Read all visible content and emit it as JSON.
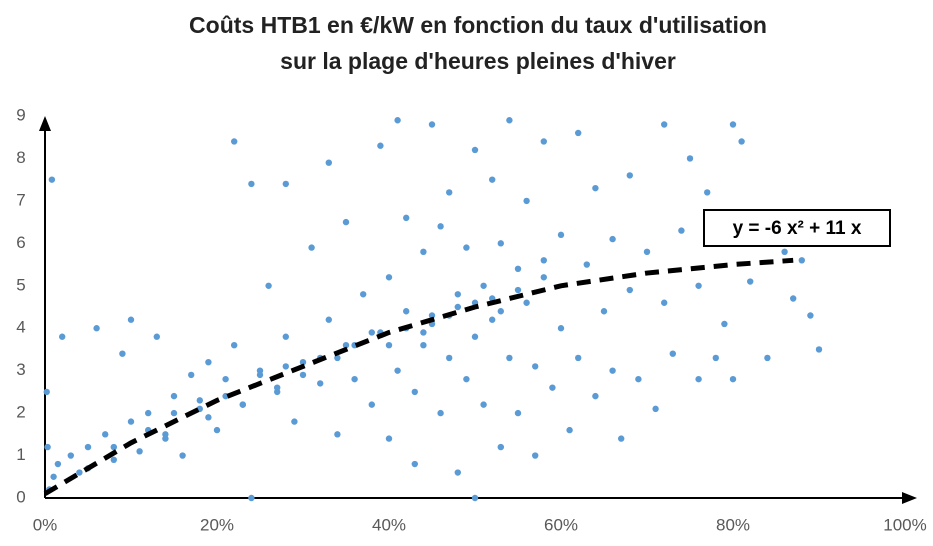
{
  "chart_data": {
    "type": "scatter",
    "title": [
      "Coûts HTB1 en €/kW en fonction du taux d'utilisation",
      "sur la plage d'heures pleines d'hiver"
    ],
    "annotation": "y = -6 x² + 11 x",
    "xlim": [
      0,
      100
    ],
    "ylim": [
      0,
      9
    ],
    "xticks": [
      {
        "value": 0,
        "label": "0%"
      },
      {
        "value": 20,
        "label": "20%"
      },
      {
        "value": 40,
        "label": "40%"
      },
      {
        "value": 60,
        "label": "60%"
      },
      {
        "value": 80,
        "label": "80%"
      },
      {
        "value": 100,
        "label": "100%"
      }
    ],
    "yticks": [
      0,
      1,
      2,
      3,
      4,
      5,
      6,
      7,
      8,
      9
    ],
    "grid": false,
    "color": "#5b9bd5",
    "x": [
      0.5,
      1,
      0.3,
      0.2,
      0.8,
      2,
      1.5,
      3,
      4,
      5,
      6,
      7,
      8,
      9,
      10,
      10,
      11,
      12,
      13,
      14,
      15,
      16,
      17,
      18,
      19,
      20,
      21,
      22,
      22,
      23,
      24,
      24,
      25,
      26,
      27,
      28,
      28,
      29,
      30,
      31,
      32,
      33,
      33,
      34,
      35,
      35,
      36,
      37,
      38,
      39,
      39,
      40,
      40,
      41,
      41,
      42,
      42,
      43,
      43,
      44,
      44,
      45,
      45,
      46,
      46,
      47,
      47,
      48,
      48,
      49,
      49,
      50,
      50,
      50,
      51,
      51,
      52,
      52,
      53,
      53,
      54,
      54,
      55,
      55,
      56,
      56,
      57,
      57,
      58,
      58,
      59,
      60,
      60,
      61,
      62,
      62,
      63,
      64,
      64,
      65,
      66,
      66,
      67,
      68,
      68,
      69,
      70,
      71,
      72,
      72,
      73,
      74,
      75,
      76,
      76,
      77,
      78,
      79,
      80,
      80,
      81,
      82,
      84,
      86,
      87,
      88,
      89,
      90,
      5,
      8,
      12,
      15,
      18,
      21,
      25,
      28,
      32,
      36,
      38,
      42,
      45,
      48,
      50,
      52,
      55,
      58,
      44,
      47,
      53,
      40,
      34,
      30,
      27,
      23,
      19,
      14
    ],
    "values": [
      0.2,
      0.5,
      1.2,
      2.5,
      7.5,
      3.8,
      0.8,
      1.0,
      0.6,
      1.2,
      4.0,
      1.5,
      0.9,
      3.4,
      1.8,
      4.2,
      1.1,
      2.0,
      3.8,
      1.5,
      2.4,
      1.0,
      2.9,
      2.1,
      3.2,
      1.6,
      2.8,
      8.4,
      3.6,
      2.2,
      7.4,
      0.0,
      3.0,
      5.0,
      2.5,
      7.4,
      3.8,
      1.8,
      3.2,
      5.9,
      2.7,
      7.9,
      4.2,
      1.5,
      3.6,
      6.5,
      2.8,
      4.8,
      2.2,
      8.3,
      3.9,
      5.2,
      1.4,
      3.0,
      8.9,
      6.6,
      4.4,
      2.5,
      0.8,
      5.8,
      3.6,
      8.8,
      4.1,
      2.0,
      6.4,
      3.3,
      7.2,
      4.8,
      0.6,
      2.8,
      5.9,
      8.2,
      3.8,
      0.0,
      5.0,
      2.2,
      7.5,
      4.2,
      1.2,
      6.0,
      8.9,
      3.3,
      5.4,
      2.0,
      7.0,
      4.6,
      3.1,
      1.0,
      5.6,
      8.4,
      2.6,
      6.2,
      4.0,
      1.6,
      8.6,
      3.3,
      5.5,
      2.4,
      7.3,
      4.4,
      3.0,
      6.1,
      1.4,
      7.6,
      4.9,
      2.8,
      5.8,
      2.1,
      8.8,
      4.6,
      3.4,
      6.3,
      8.0,
      2.8,
      5.0,
      7.2,
      3.3,
      4.1,
      2.8,
      8.8,
      8.4,
      5.1,
      3.3,
      5.8,
      4.7,
      5.6,
      4.3,
      3.5,
      0.7,
      1.2,
      1.6,
      2.0,
      2.3,
      2.4,
      2.9,
      3.1,
      3.3,
      3.6,
      3.9,
      4.0,
      4.3,
      4.5,
      4.6,
      4.7,
      4.9,
      5.2,
      3.9,
      4.3,
      4.4,
      3.6,
      3.3,
      2.9,
      2.6,
      2.2,
      1.9,
      1.4
    ],
    "trendline": {
      "x": [
        0,
        10,
        20,
        30,
        40,
        50,
        60,
        70,
        80,
        87
      ],
      "values": [
        0.1,
        1.3,
        2.3,
        3.1,
        3.9,
        4.5,
        5.0,
        5.3,
        5.5,
        5.6
      ]
    }
  }
}
